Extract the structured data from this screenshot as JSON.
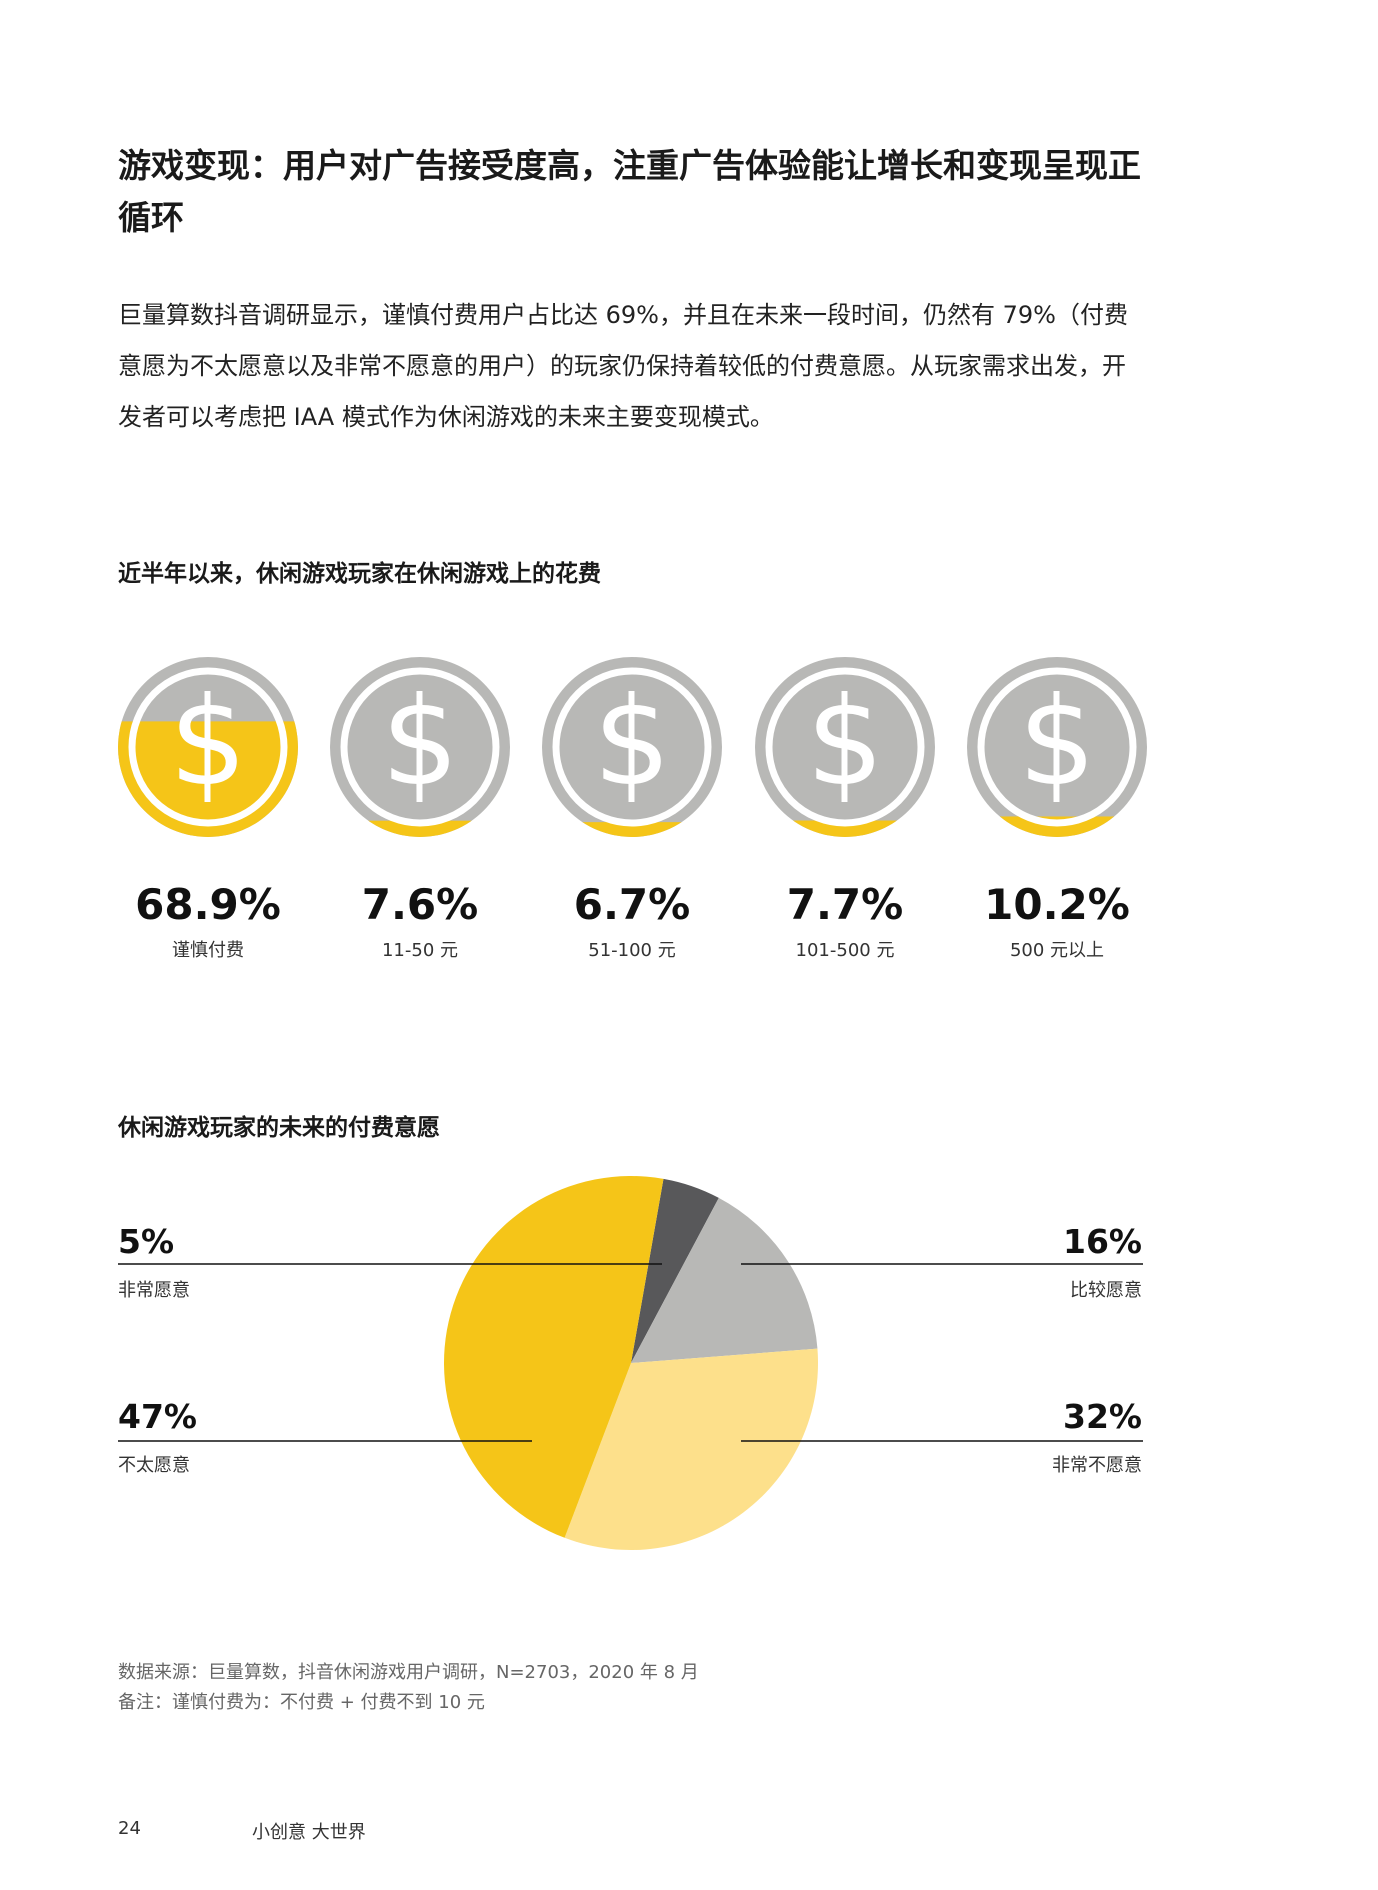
{
  "heading": "游戏变现：用户对广告接受度高，注重广告体验能让增长和变现呈现正循环",
  "intro": "巨量算数抖音调研显示，谨慎付费用户占比达 69%，并且在未来一段时间，仍然有 79%（付费意愿为不太愿意以及非常不愿意的用户）的玩家仍保持着较低的付费意愿。从玩家需求出发，开发者可以考虑把 IAA 模式作为休闲游戏的未来主要变现模式。",
  "chart_data": [
    {
      "type": "bar",
      "title": "近半年以来，休闲游戏玩家在休闲游戏上的花费",
      "categories": [
        "谨慎付费",
        "11-50 元",
        "51-100 元",
        "101-500 元",
        "500 元以上"
      ],
      "values": [
        68.9,
        7.6,
        6.7,
        7.7,
        10.2
      ],
      "value_labels": [
        "68.9%",
        "7.6%",
        "6.7%",
        "7.7%",
        "10.2%"
      ],
      "colors": {
        "fill": "#F5C518",
        "empty": "#B8B8B6",
        "symbol": "#ffffff"
      }
    },
    {
      "type": "pie",
      "title": "休闲游戏玩家的未来的付费意愿",
      "slices": [
        {
          "label": "非常愿意",
          "value": 5,
          "display": "5%",
          "color": "#58585A",
          "side": "top-left"
        },
        {
          "label": "比较愿意",
          "value": 16,
          "display": "16%",
          "color": "#B8B8B6",
          "side": "top-right"
        },
        {
          "label": "非常不愿意",
          "value": 32,
          "display": "32%",
          "color": "#FDE08B",
          "side": "bottom-right"
        },
        {
          "label": "不太愿意",
          "value": 47,
          "display": "47%",
          "color": "#F5C518",
          "side": "bottom-left"
        }
      ]
    }
  ],
  "footnotes": {
    "source": "数据来源：巨量算数，抖音休闲游戏用户调研，N=2703，2020 年 8 月",
    "note": "备注：谨慎付费为：不付费 + 付费不到 10 元"
  },
  "footer": {
    "page": "24",
    "brand": "小创意  大世界"
  }
}
